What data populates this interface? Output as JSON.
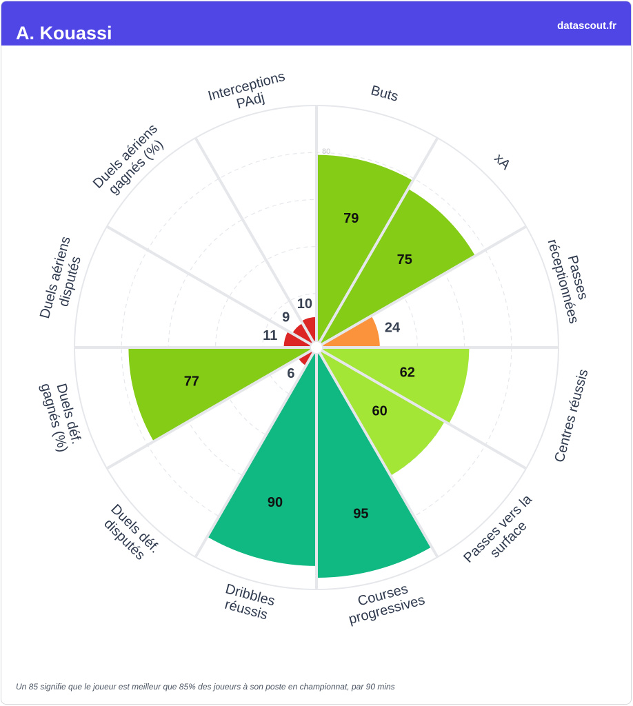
{
  "header": {
    "player_name": "A. Kouassi",
    "site": "datascout.fr",
    "background_color": "#4f46e5"
  },
  "footer": {
    "note": "Un 85 signifie que le joueur est meilleur que 85% des joueurs à son poste en championnat, par 90 mins"
  },
  "chart_data": {
    "type": "radar-bar",
    "scale_max": 100,
    "ring_label": "80",
    "categories": [
      {
        "label": [
          "Buts"
        ],
        "value": 79,
        "color": "#84cc16"
      },
      {
        "label": [
          "xA"
        ],
        "value": 75,
        "color": "#84cc16"
      },
      {
        "label": [
          "Passes",
          "réceptionnées"
        ],
        "value": 24,
        "color": "#fb923c"
      },
      {
        "label": [
          "Centres réussis"
        ],
        "value": 62,
        "color": "#a3e635"
      },
      {
        "label": [
          "Passes vers la",
          "surface"
        ],
        "value": 60,
        "color": "#a3e635"
      },
      {
        "label": [
          "Courses",
          "progressives"
        ],
        "value": 95,
        "color": "#10b981"
      },
      {
        "label": [
          "Dribbles",
          "réussis"
        ],
        "value": 90,
        "color": "#10b981"
      },
      {
        "label": [
          "Duels déf.",
          "disputés"
        ],
        "value": 6,
        "color": "#dc2626"
      },
      {
        "label": [
          "Duels déf.",
          "gagnés (%)"
        ],
        "value": 77,
        "color": "#84cc16"
      },
      {
        "label": [
          "Duels aériens",
          "disputés"
        ],
        "value": 11,
        "color": "#dc2626"
      },
      {
        "label": [
          "Duels aériens",
          "gagnés (%)"
        ],
        "value": 9,
        "color": "#dc2626"
      },
      {
        "label": [
          "Interceptions",
          "PAdj"
        ],
        "value": 10,
        "color": "#dc2626"
      }
    ]
  }
}
